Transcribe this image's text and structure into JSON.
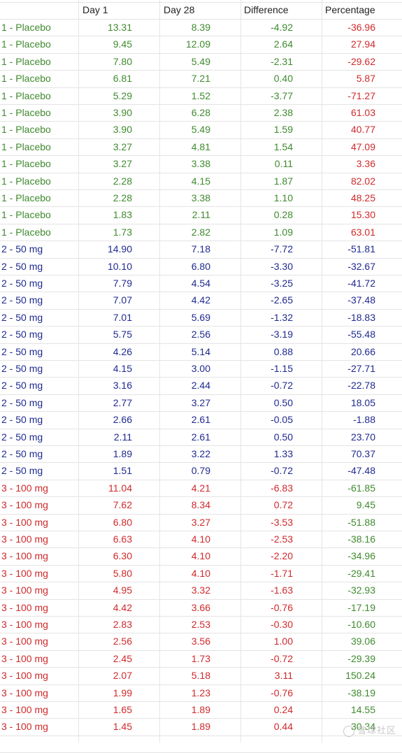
{
  "headers": [
    "",
    "Day 1",
    "Day 28",
    "Difference",
    "Percentage"
  ],
  "group_colors": {
    "placebo": "#3f8a2e",
    "mg50": "#1f2a8f",
    "mg100": "#d0292b"
  },
  "rows": [
    [
      "1 - Placebo",
      "13.31",
      "8.39",
      "-4.92",
      "-36.96"
    ],
    [
      "1 - Placebo",
      "9.45",
      "12.09",
      "2.64",
      "27.94"
    ],
    [
      "1 - Placebo",
      "7.80",
      "5.49",
      "-2.31",
      "-29.62"
    ],
    [
      "1 - Placebo",
      "6.81",
      "7.21",
      "0.40",
      "5.87"
    ],
    [
      "1 - Placebo",
      "5.29",
      "1.52",
      "-3.77",
      "-71.27"
    ],
    [
      "1 - Placebo",
      "3.90",
      "6.28",
      "2.38",
      "61.03"
    ],
    [
      "1 - Placebo",
      "3.90",
      "5.49",
      "1.59",
      "40.77"
    ],
    [
      "1 - Placebo",
      "3.27",
      "4.81",
      "1.54",
      "47.09"
    ],
    [
      "1 - Placebo",
      "3.27",
      "3.38",
      "0.11",
      "3.36"
    ],
    [
      "1 - Placebo",
      "2.28",
      "4.15",
      "1.87",
      "82.02"
    ],
    [
      "1 - Placebo",
      "2.28",
      "3.38",
      "1.10",
      "48.25"
    ],
    [
      "1 - Placebo",
      "1.83",
      "2.11",
      "0.28",
      "15.30"
    ],
    [
      "1 - Placebo",
      "1.73",
      "2.82",
      "1.09",
      "63.01"
    ],
    [
      "2 - 50 mg",
      "14.90",
      "7.18",
      "-7.72",
      "-51.81"
    ],
    [
      "2 - 50 mg",
      "10.10",
      "6.80",
      "-3.30",
      "-32.67"
    ],
    [
      "2 - 50 mg",
      "7.79",
      "4.54",
      "-3.25",
      "-41.72"
    ],
    [
      "2 - 50 mg",
      "7.07",
      "4.42",
      "-2.65",
      "-37.48"
    ],
    [
      "2 - 50 mg",
      "7.01",
      "5.69",
      "-1.32",
      "-18.83"
    ],
    [
      "2 - 50 mg",
      "5.75",
      "2.56",
      "-3.19",
      "-55.48"
    ],
    [
      "2 - 50 mg",
      "4.26",
      "5.14",
      "0.88",
      "20.66"
    ],
    [
      "2 - 50 mg",
      "4.15",
      "3.00",
      "-1.15",
      "-27.71"
    ],
    [
      "2 - 50 mg",
      "3.16",
      "2.44",
      "-0.72",
      "-22.78"
    ],
    [
      "2 - 50 mg",
      "2.77",
      "3.27",
      "0.50",
      "18.05"
    ],
    [
      "2 - 50 mg",
      "2.66",
      "2.61",
      "-0.05",
      "-1.88"
    ],
    [
      "2 - 50 mg",
      "2.11",
      "2.61",
      "0.50",
      "23.70"
    ],
    [
      "2 - 50 mg",
      "1.89",
      "3.22",
      "1.33",
      "70.37"
    ],
    [
      "2 - 50 mg",
      "1.51",
      "0.79",
      "-0.72",
      "-47.48"
    ],
    [
      "3 - 100 mg",
      "11.04",
      "4.21",
      "-6.83",
      "-61.85"
    ],
    [
      "3 - 100 mg",
      "7.62",
      "8.34",
      "0.72",
      "9.45"
    ],
    [
      "3 - 100 mg",
      "6.80",
      "3.27",
      "-3.53",
      "-51.88"
    ],
    [
      "3 - 100 mg",
      "6.63",
      "4.10",
      "-2.53",
      "-38.16"
    ],
    [
      "3 - 100 mg",
      "6.30",
      "4.10",
      "-2.20",
      "-34.96"
    ],
    [
      "3 - 100 mg",
      "5.80",
      "4.10",
      "-1.71",
      "-29.41"
    ],
    [
      "3 - 100 mg",
      "4.95",
      "3.32",
      "-1.63",
      "-32.93"
    ],
    [
      "3 - 100 mg",
      "4.42",
      "3.66",
      "-0.76",
      "-17.19"
    ],
    [
      "3 - 100 mg",
      "2.83",
      "2.53",
      "-0.30",
      "-10.60"
    ],
    [
      "3 - 100 mg",
      "2.56",
      "3.56",
      "1.00",
      "39.06"
    ],
    [
      "3 - 100 mg",
      "2.45",
      "1.73",
      "-0.72",
      "-29.39"
    ],
    [
      "3 - 100 mg",
      "2.07",
      "5.18",
      "3.11",
      "150.24"
    ],
    [
      "3 - 100 mg",
      "1.99",
      "1.23",
      "-0.76",
      "-38.19"
    ],
    [
      "3 - 100 mg",
      "1.65",
      "1.89",
      "0.24",
      "14.55"
    ],
    [
      "3 - 100 mg",
      "1.45",
      "1.89",
      "0.44",
      "30.34"
    ]
  ],
  "watermark": "雪球社区"
}
